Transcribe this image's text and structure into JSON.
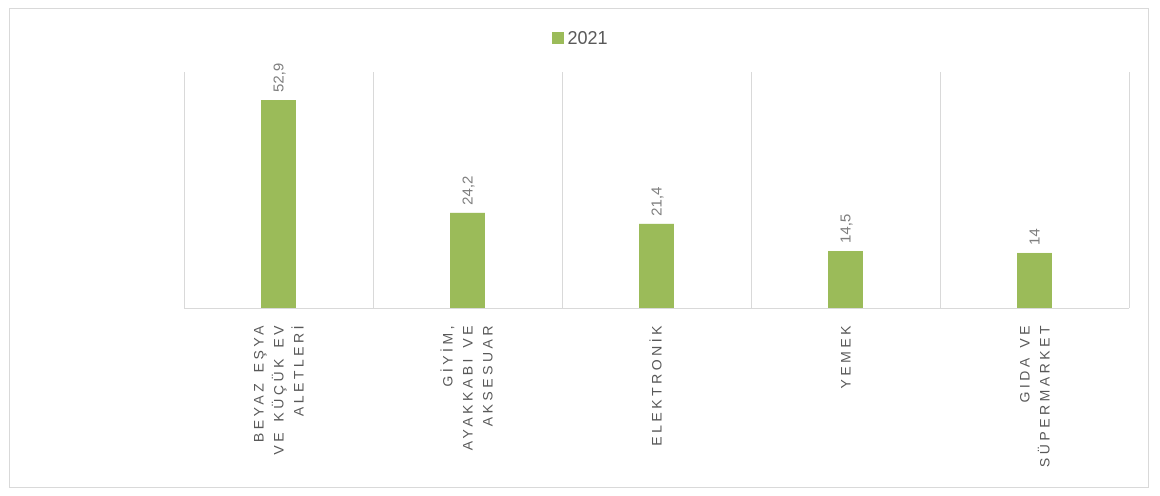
{
  "chart_data": {
    "type": "bar",
    "categories": [
      [
        "BEYAZ EŞYA",
        "VE KÜÇÜK EV",
        "ALETLERİ"
      ],
      [
        "GİYİM,",
        "AYAKKABI VE",
        "AKSESUAR"
      ],
      [
        "ELEKTRONİK"
      ],
      [
        "YEMEK"
      ],
      [
        "GIDA VE",
        "SÜPERMARKET"
      ]
    ],
    "series": [
      {
        "name": "2021",
        "values": [
          52.9,
          24.2,
          21.4,
          14.5,
          14
        ],
        "color": "#9bbb59"
      }
    ],
    "data_labels": [
      "52,9",
      "24,2",
      "21,4",
      "14,5",
      "14"
    ],
    "ylim": [
      0,
      60
    ],
    "grid": "vertical category separators",
    "legend_position": "top"
  }
}
